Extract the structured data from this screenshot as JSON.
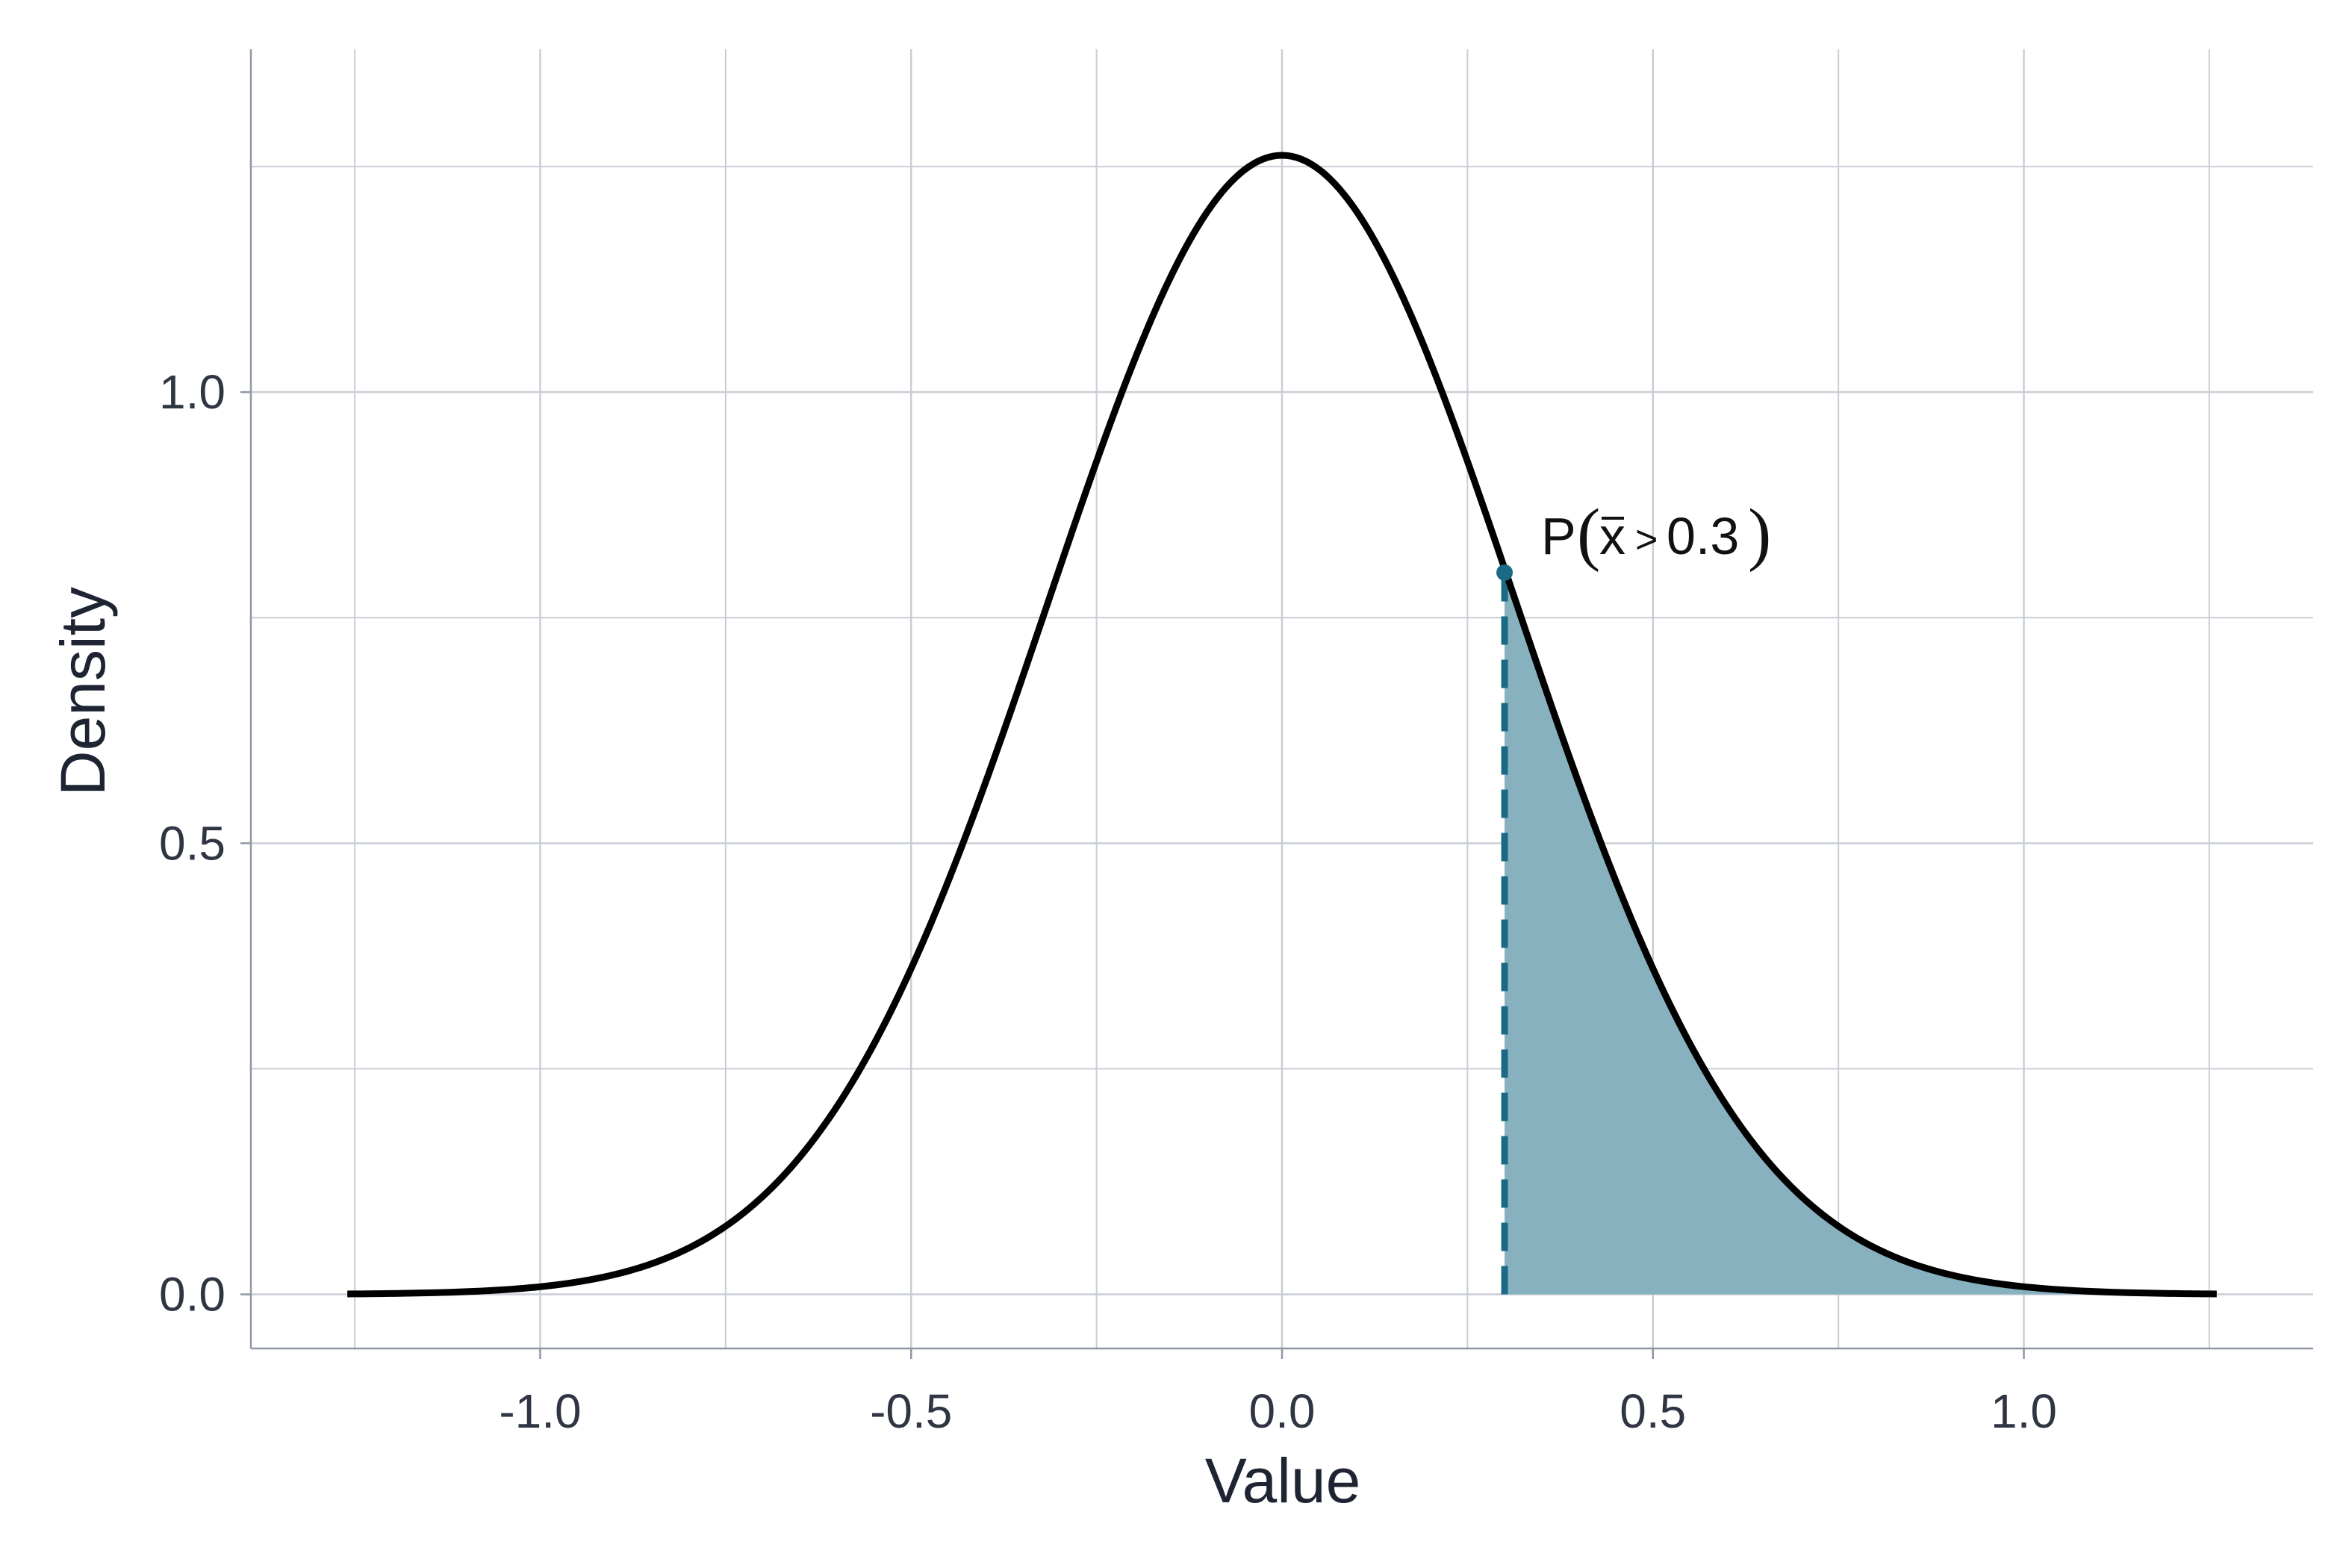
{
  "chart_data": {
    "type": "area",
    "xlabel": "Value",
    "ylabel": "Density",
    "xlim": [
      -1.39,
      1.39
    ],
    "ylim": [
      -0.06,
      1.38
    ],
    "x_ticks": [
      "-1.0",
      "-0.5",
      "0.0",
      "0.5",
      "1.0"
    ],
    "x_tick_values": [
      -1.0,
      -0.5,
      0.0,
      0.5,
      1.0
    ],
    "y_ticks": [
      "0.0",
      "0.5",
      "1.0"
    ],
    "y_tick_values": [
      0.0,
      0.5,
      1.0
    ],
    "grid": true,
    "series": [
      {
        "type": "normal_density",
        "mean": 0.0,
        "sd": 0.316,
        "x_range": [
          -1.26,
          1.26
        ],
        "color": "#000000"
      }
    ],
    "shaded_region": {
      "from": 0.3,
      "to": 1.26,
      "fill": "#88b1bf"
    },
    "threshold": {
      "x": 0.3,
      "y": 0.8,
      "color": "#1b6985",
      "style": "dashed"
    },
    "annotation": {
      "prefix": "P",
      "open": "(",
      "xbar": "x",
      "op": ">",
      "value": "0.3",
      "close": ")"
    }
  }
}
